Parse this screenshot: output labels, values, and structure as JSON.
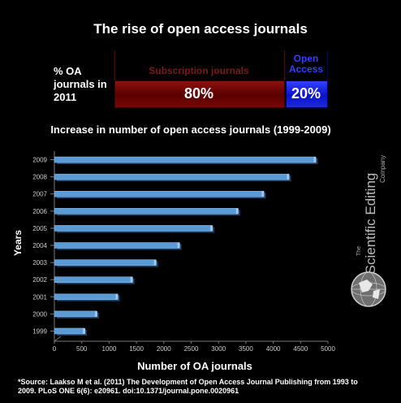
{
  "title": "The rise of open access journals",
  "share": {
    "label": "% OA journals in 2011",
    "subscription": {
      "name": "Subscription journals",
      "value": "80%",
      "percent": 80,
      "color": "#7a0606"
    },
    "open_access": {
      "name": "Open Access",
      "value": "20%",
      "percent": 20,
      "color": "#1d2ae0"
    }
  },
  "logo": {
    "line1": "The",
    "line2": "Scientific Editing",
    "line3": "Company"
  },
  "source": "*Source: Laakso M et al. (2011) The Development of Open Access Journal Publishing from 1993 to 2009. PLoS ONE 6(6): e20961. doi:10.1371/journal.pone.0020961",
  "chart_data": {
    "type": "bar",
    "orientation": "horizontal",
    "title": "Increase in number of open access journals (1999-2009)",
    "xlabel": "Number of OA journals",
    "ylabel": "Years",
    "categories": [
      "1999",
      "2000",
      "2001",
      "2002",
      "2003",
      "2004",
      "2005",
      "2006",
      "2007",
      "2008",
      "2009"
    ],
    "values": [
      550,
      770,
      1150,
      1420,
      1850,
      2280,
      2880,
      3350,
      3820,
      4280,
      4770
    ],
    "xlim": [
      0,
      5000
    ],
    "xticks": [
      "0",
      "500",
      "1000",
      "1500",
      "2000",
      "2500",
      "3000",
      "3500",
      "4000",
      "4500",
      "5000"
    ],
    "grid": false,
    "bar_color": "#5b9bd5"
  }
}
